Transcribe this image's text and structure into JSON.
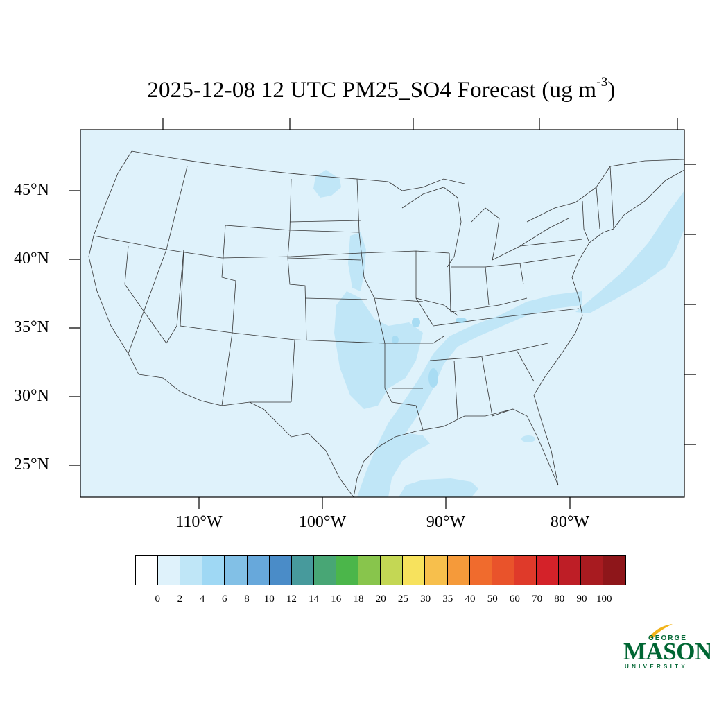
{
  "title": {
    "main": "2025-12-08 12 UTC PM25_SO4 Forecast (ug m",
    "sup": "-3",
    "close": ")"
  },
  "map": {
    "projection": "Lambert Conformal",
    "background_color": "#dff2fb",
    "lat_labels": [
      "45°N",
      "40°N",
      "35°N",
      "30°N",
      "25°N"
    ],
    "lon_labels": [
      "110°W",
      "100°W",
      "90°W",
      "80°W"
    ],
    "plume_colors": {
      "light": "#c0e6f7",
      "medium": "#a8dcf3",
      "darker": "#95d2ef"
    }
  },
  "colorbar": {
    "colors": [
      "#ffffff",
      "#dff2fb",
      "#bfe6f7",
      "#9fd8f4",
      "#82c0e6",
      "#67a8db",
      "#4a8cc8",
      "#479a9c",
      "#48a675",
      "#4bb64a",
      "#88c54c",
      "#c4d754",
      "#f7e25d",
      "#f7bf4c",
      "#f59a3a",
      "#f06b2d",
      "#e9532b",
      "#df3a2a",
      "#d42229",
      "#be1e26",
      "#a81b20",
      "#8e161a"
    ],
    "levels": [
      "0",
      "2",
      "4",
      "6",
      "8",
      "10",
      "12",
      "14",
      "16",
      "18",
      "20",
      "25",
      "30",
      "35",
      "40",
      "50",
      "60",
      "70",
      "80",
      "90",
      "100"
    ]
  },
  "logo": {
    "top": "GEORGE",
    "main": "MASON",
    "bottom": "UNIVERSITY",
    "color": "#006633",
    "accent": "#f2b41b"
  }
}
